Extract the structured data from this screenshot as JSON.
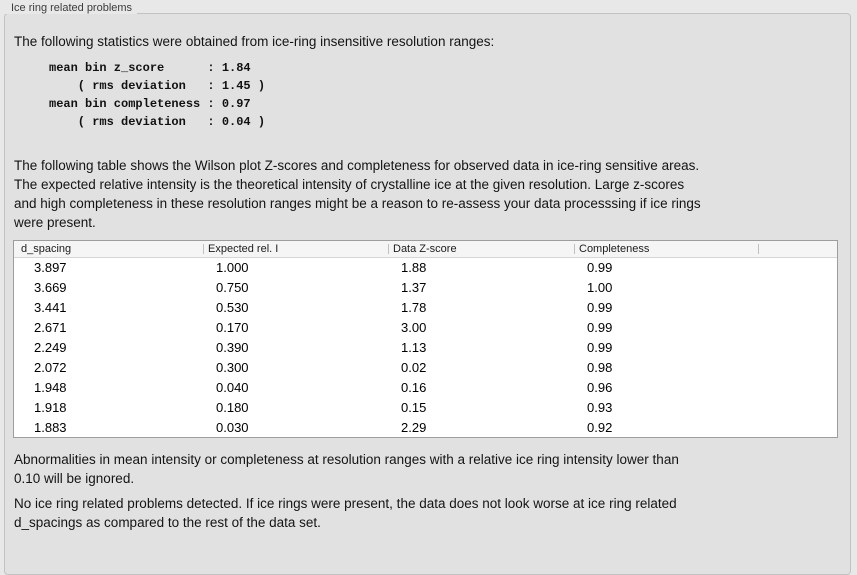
{
  "panel": {
    "title": "Ice ring related problems",
    "background_color": "#e1e1e1",
    "outer_background_color": "#e8e8e8"
  },
  "intro": "The following statistics were obtained from ice-ring insensitive resolution ranges:",
  "stats_block": {
    "lines": [
      "mean bin z_score      : 1.84",
      "    ( rms deviation   : 1.45 )",
      "mean bin completeness : 0.97",
      "    ( rms deviation   : 0.04 )"
    ],
    "mean_bin_z_score": "1.84",
    "z_score_rms_deviation": "1.45",
    "mean_bin_completeness": "0.97",
    "completeness_rms_deviation": "0.04"
  },
  "table_description": {
    "lines": [
      "The following table shows the Wilson plot Z-scores and completeness for observed data in ice-ring sensitive areas.",
      "The expected relative intensity is the theoretical intensity of crystalline ice at the given resolution. Large z-scores",
      "and high completeness in these resolution ranges might be a reason to re-assess your data processsing if ice rings",
      "were present."
    ]
  },
  "table": {
    "columns": [
      "d_spacing",
      "Expected rel. I",
      "Data Z-score",
      "Completeness",
      ""
    ],
    "header_background": "#f5f5f5",
    "border_color": "#9d9d9d",
    "rows": [
      [
        "3.897",
        "1.000",
        "1.88",
        "0.99"
      ],
      [
        "3.669",
        "0.750",
        "1.37",
        "1.00"
      ],
      [
        "3.441",
        "0.530",
        "1.78",
        "0.99"
      ],
      [
        "2.671",
        "0.170",
        "3.00",
        "0.99"
      ],
      [
        "2.249",
        "0.390",
        "1.13",
        "0.99"
      ],
      [
        "2.072",
        "0.300",
        "0.02",
        "0.98"
      ],
      [
        "1.948",
        "0.040",
        "0.16",
        "0.96"
      ],
      [
        "1.918",
        "0.180",
        "0.15",
        "0.93"
      ],
      [
        "1.883",
        "0.030",
        "2.29",
        "0.92"
      ]
    ]
  },
  "note_ignore": {
    "lines": [
      "Abnormalities in mean intensity or completeness at resolution ranges with a relative ice ring intensity lower than",
      "0.10 will be ignored."
    ]
  },
  "conclusion": {
    "lines": [
      "No ice ring related problems detected. If ice rings were present, the data does not look worse at ice ring related",
      "d_spacings as compared to the rest of the data set."
    ]
  }
}
